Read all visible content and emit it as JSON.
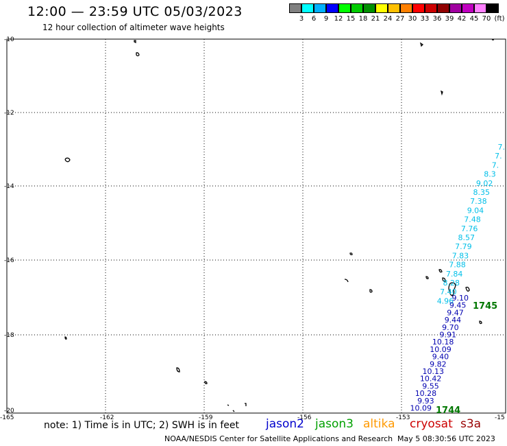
{
  "header": {
    "title": "12:00 — 23:59 UTC 05/03/2023",
    "subtitle": "12 hour collection of altimeter wave heights"
  },
  "legend": {
    "unit": "(ft)",
    "colors": [
      "#808080",
      "#00ffff",
      "#00b0ff",
      "#0000ff",
      "#00ff00",
      "#00cc00",
      "#009000",
      "#ffff00",
      "#ffc000",
      "#ff8000",
      "#ff0000",
      "#cc0000",
      "#900000",
      "#a000a0",
      "#c000c0",
      "#ff80ff",
      "#000000"
    ],
    "labels": [
      "3",
      "6",
      "9",
      "12",
      "15",
      "18",
      "21",
      "24",
      "27",
      "30",
      "33",
      "36",
      "39",
      "42",
      "45",
      "70"
    ]
  },
  "axes": {
    "lon_ticks": [
      "-165",
      "-162",
      "-159",
      "-156",
      "-153",
      "-15"
    ],
    "lat_ticks": [
      "-10",
      "-12",
      "-14",
      "-16",
      "-18",
      "-20"
    ]
  },
  "track_a": {
    "color": "#00bfe8",
    "values": [
      "7.",
      "7.",
      "7.",
      "8.3",
      "9.02",
      "8.35",
      "7.38",
      "9.04",
      "7.48",
      "7.76",
      "8.57",
      "7.79",
      "7.83",
      "7.88",
      "7.84",
      "8.28",
      "7.40",
      "4.96"
    ]
  },
  "track_b": {
    "color": "#0000b0",
    "values": [
      "9.10",
      "9.45",
      "9.47",
      "9.44",
      "9.70",
      "9.91",
      "10.18",
      "10.09",
      "9.40",
      "9.82",
      "10.13",
      "10.42",
      "9.55",
      "10.28",
      "9.93",
      "10.09"
    ]
  },
  "times": {
    "t1": "1745",
    "t2": "1744",
    "color": "#007700"
  },
  "note": "note: 1) Time is in UTC; 2) SWH is in feet",
  "satellites": {
    "jason2": {
      "label": "jason2",
      "color": "#0000cc"
    },
    "jason3": {
      "label": "jason3",
      "color": "#00a000"
    },
    "altika": {
      "label": "altika",
      "color": "#ff9900"
    },
    "cryosat": {
      "label": "cryosat",
      "color": "#cc0000"
    },
    "s3a": {
      "label": "s3a",
      "color": "#990000"
    }
  },
  "footer": {
    "source": "NOAA/NESDIS Center for Satellite Applications and Research",
    "timestamp": "May  5 08:30:56 UTC 2023"
  }
}
